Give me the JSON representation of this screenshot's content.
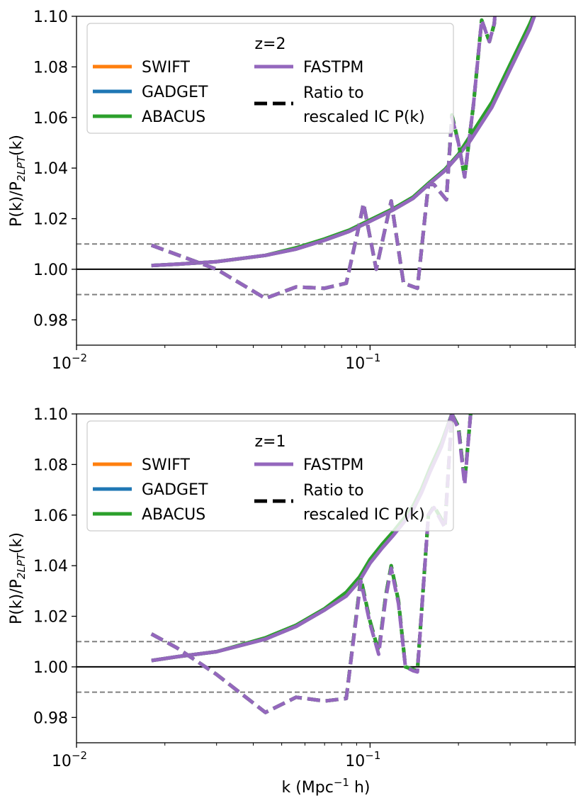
{
  "colors": {
    "swift": "#ff7f0e",
    "gadget": "#1f77b4",
    "abacus": "#2ca02c",
    "fastpm": "#9467bd",
    "ratio": "#000000",
    "reference": "#000000",
    "band": "#808080"
  },
  "chart_data": [
    {
      "type": "line",
      "title": "",
      "annotation": "z=2",
      "xlabel": "",
      "ylabel": "P(k)/P2LPT(k)",
      "ylabel_main": "P(k)/P",
      "ylabel_sub": "2LPT",
      "ylabel_tail": "(k)",
      "xscale": "log",
      "xlim": [
        0.01,
        0.5
      ],
      "ylim": [
        0.97,
        1.1
      ],
      "xticks": [
        {
          "value": 0.01,
          "base": "10",
          "exp": "−2"
        },
        {
          "value": 0.1,
          "base": "10",
          "exp": "−1"
        }
      ],
      "yticks": [
        0.98,
        1.0,
        1.02,
        1.04,
        1.06,
        1.08,
        1.1
      ],
      "ytick_labels": [
        "0.98",
        "1.00",
        "1.02",
        "1.04",
        "1.06",
        "1.08",
        "1.10"
      ],
      "reference_line": 1.0,
      "band_lines": [
        0.99,
        1.01
      ],
      "legend": {
        "placement": "upper-left",
        "title": "z=2",
        "entries": [
          {
            "label": "SWIFT",
            "key": "swift",
            "style": "solid"
          },
          {
            "label": "GADGET",
            "key": "gadget",
            "style": "solid"
          },
          {
            "label": "ABACUS",
            "key": "abacus",
            "style": "solid"
          },
          {
            "label": "FASTPM",
            "key": "fastpm",
            "style": "solid"
          },
          {
            "label": "Ratio to",
            "label2": "rescaled IC P(k)",
            "key": "ratio",
            "style": "dashed"
          }
        ]
      },
      "series": [
        {
          "name": "SWIFT",
          "key": "swift",
          "style": "solid",
          "x": [
            0.018,
            0.022,
            0.03,
            0.044,
            0.056,
            0.07,
            0.085,
            0.1,
            0.12,
            0.14,
            0.16,
            0.18,
            0.2,
            0.22,
            0.26,
            0.3,
            0.35,
            0.39
          ],
          "y": [
            1.0015,
            1.002,
            1.003,
            1.0055,
            1.008,
            1.0115,
            1.015,
            1.019,
            1.0235,
            1.028,
            1.034,
            1.039,
            1.045,
            1.052,
            1.065,
            1.08,
            1.096,
            1.11
          ]
        },
        {
          "name": "GADGET",
          "key": "gadget",
          "style": "solid",
          "x": [
            0.018,
            0.022,
            0.03,
            0.044,
            0.056,
            0.07,
            0.085,
            0.1,
            0.12,
            0.14,
            0.16,
            0.18,
            0.2,
            0.22,
            0.26,
            0.3,
            0.35,
            0.39
          ],
          "y": [
            1.0015,
            1.002,
            1.003,
            1.0055,
            1.008,
            1.0115,
            1.015,
            1.019,
            1.0235,
            1.028,
            1.034,
            1.039,
            1.045,
            1.052,
            1.065,
            1.08,
            1.096,
            1.11
          ]
        },
        {
          "name": "ABACUS",
          "key": "abacus",
          "style": "solid",
          "x": [
            0.018,
            0.022,
            0.03,
            0.044,
            0.056,
            0.07,
            0.085,
            0.1,
            0.12,
            0.14,
            0.16,
            0.18,
            0.2,
            0.22,
            0.26,
            0.3,
            0.35,
            0.39
          ],
          "y": [
            1.0015,
            1.002,
            1.003,
            1.0055,
            1.0085,
            1.012,
            1.0155,
            1.0195,
            1.024,
            1.0285,
            1.0345,
            1.0395,
            1.0455,
            1.053,
            1.066,
            1.081,
            1.097,
            1.11
          ]
        },
        {
          "name": "FASTPM",
          "key": "fastpm",
          "style": "solid",
          "x": [
            0.018,
            0.022,
            0.03,
            0.044,
            0.056,
            0.07,
            0.085,
            0.1,
            0.12,
            0.14,
            0.16,
            0.18,
            0.2,
            0.22,
            0.26,
            0.3,
            0.35,
            0.39
          ],
          "y": [
            1.0015,
            1.002,
            1.003,
            1.0055,
            1.008,
            1.0115,
            1.015,
            1.019,
            1.0235,
            1.028,
            1.034,
            1.039,
            1.045,
            1.051,
            1.064,
            1.079,
            1.095,
            1.11
          ]
        },
        {
          "name": "SWIFT ratio",
          "key": "swift",
          "style": "dashed",
          "x": [
            0.018,
            0.03,
            0.044,
            0.056,
            0.07,
            0.083,
            0.092,
            0.095,
            0.105,
            0.118,
            0.13,
            0.145,
            0.158,
            0.165,
            0.182,
            0.19,
            0.2,
            0.21,
            0.225,
            0.24,
            0.255,
            0.265,
            0.27
          ],
          "y": [
            1.0095,
            1.0,
            0.9885,
            0.993,
            0.9925,
            0.9945,
            1.018,
            1.026,
            1.0,
            1.027,
            0.9945,
            0.9925,
            1.0335,
            1.0335,
            1.0275,
            1.061,
            1.05,
            1.0365,
            1.065,
            1.0985,
            1.09,
            1.097,
            1.11
          ]
        },
        {
          "name": "GADGET ratio",
          "key": "gadget",
          "style": "dashed",
          "x": [
            0.018,
            0.03,
            0.044,
            0.056,
            0.07,
            0.083,
            0.092,
            0.095,
            0.105,
            0.118,
            0.13,
            0.145,
            0.158,
            0.165,
            0.182,
            0.19,
            0.2,
            0.21,
            0.225,
            0.24,
            0.255,
            0.265,
            0.27
          ],
          "y": [
            1.0095,
            1.0,
            0.9885,
            0.993,
            0.9925,
            0.9945,
            1.018,
            1.026,
            1.0,
            1.027,
            0.9945,
            0.9925,
            1.0335,
            1.0335,
            1.0275,
            1.061,
            1.05,
            1.0365,
            1.065,
            1.0985,
            1.09,
            1.097,
            1.11
          ]
        },
        {
          "name": "ABACUS ratio",
          "key": "abacus",
          "style": "dashed",
          "x": [
            0.018,
            0.03,
            0.044,
            0.056,
            0.07,
            0.083,
            0.092,
            0.095,
            0.105,
            0.118,
            0.13,
            0.145,
            0.158,
            0.165,
            0.182,
            0.19,
            0.2,
            0.21,
            0.225,
            0.24,
            0.255,
            0.265,
            0.27
          ],
          "y": [
            1.0095,
            1.0,
            0.9885,
            0.993,
            0.9925,
            0.9945,
            1.018,
            1.026,
            1.0,
            1.027,
            0.9945,
            0.9925,
            1.0335,
            1.0335,
            1.0275,
            1.061,
            1.05,
            1.0365,
            1.065,
            1.0985,
            1.09,
            1.097,
            1.11
          ]
        },
        {
          "name": "FASTPM ratio",
          "key": "fastpm",
          "style": "dashed",
          "x": [
            0.018,
            0.03,
            0.044,
            0.056,
            0.07,
            0.083,
            0.092,
            0.095,
            0.105,
            0.118,
            0.13,
            0.145,
            0.158,
            0.165,
            0.182,
            0.19,
            0.2,
            0.21,
            0.225,
            0.24,
            0.255,
            0.265,
            0.27
          ],
          "y": [
            1.0095,
            1.0,
            0.9885,
            0.993,
            0.9925,
            0.9945,
            1.018,
            1.026,
            1.0,
            1.027,
            0.9945,
            0.9925,
            1.0335,
            1.0335,
            1.0275,
            1.06,
            1.05,
            1.0365,
            1.065,
            1.0985,
            1.09,
            1.097,
            1.11
          ]
        }
      ]
    },
    {
      "type": "line",
      "title": "",
      "annotation": "z=1",
      "xlabel": "k (Mpc−1 h)",
      "xlabel_main": "k (Mpc",
      "xlabel_sup": "−1",
      "xlabel_tail": " h)",
      "ylabel": "P(k)/P2LPT(k)",
      "ylabel_main": "P(k)/P",
      "ylabel_sub": "2LPT",
      "ylabel_tail": "(k)",
      "xscale": "log",
      "xlim": [
        0.01,
        0.5
      ],
      "ylim": [
        0.97,
        1.1
      ],
      "xticks": [
        {
          "value": 0.01,
          "base": "10",
          "exp": "−2"
        },
        {
          "value": 0.1,
          "base": "10",
          "exp": "−1"
        }
      ],
      "yticks": [
        0.98,
        1.0,
        1.02,
        1.04,
        1.06,
        1.08,
        1.1
      ],
      "ytick_labels": [
        "0.98",
        "1.00",
        "1.02",
        "1.04",
        "1.06",
        "1.08",
        "1.10"
      ],
      "reference_line": 1.0,
      "band_lines": [
        0.99,
        1.01
      ],
      "legend": {
        "placement": "upper-left",
        "title": "z=1",
        "entries": [
          {
            "label": "SWIFT",
            "key": "swift",
            "style": "solid"
          },
          {
            "label": "GADGET",
            "key": "gadget",
            "style": "solid"
          },
          {
            "label": "ABACUS",
            "key": "abacus",
            "style": "solid"
          },
          {
            "label": "FASTPM",
            "key": "fastpm",
            "style": "solid"
          },
          {
            "label": "Ratio to",
            "label2": "rescaled IC P(k)",
            "key": "ratio",
            "style": "dashed"
          }
        ]
      },
      "series": [
        {
          "name": "SWIFT",
          "key": "swift",
          "style": "solid",
          "x": [
            0.018,
            0.022,
            0.03,
            0.044,
            0.056,
            0.07,
            0.083,
            0.092,
            0.1,
            0.11,
            0.12,
            0.13,
            0.14,
            0.15,
            0.16,
            0.175,
            0.19
          ],
          "y": [
            1.0025,
            1.004,
            1.006,
            1.011,
            1.016,
            1.0225,
            1.029,
            1.035,
            1.042,
            1.048,
            1.053,
            1.058,
            1.063,
            1.07,
            1.078,
            1.088,
            1.1
          ]
        },
        {
          "name": "GADGET",
          "key": "gadget",
          "style": "solid",
          "x": [
            0.018,
            0.022,
            0.03,
            0.044,
            0.056,
            0.07,
            0.083,
            0.092,
            0.1,
            0.11,
            0.12,
            0.13,
            0.14,
            0.15,
            0.16,
            0.175,
            0.19
          ],
          "y": [
            1.0025,
            1.004,
            1.006,
            1.011,
            1.016,
            1.0225,
            1.029,
            1.035,
            1.042,
            1.048,
            1.053,
            1.058,
            1.063,
            1.07,
            1.078,
            1.088,
            1.1
          ]
        },
        {
          "name": "ABACUS",
          "key": "abacus",
          "style": "solid",
          "x": [
            0.018,
            0.022,
            0.03,
            0.044,
            0.056,
            0.07,
            0.083,
            0.092,
            0.1,
            0.11,
            0.12,
            0.13,
            0.14,
            0.15,
            0.16,
            0.175,
            0.19
          ],
          "y": [
            1.0025,
            1.004,
            1.006,
            1.0115,
            1.0165,
            1.023,
            1.0295,
            1.0355,
            1.0425,
            1.0485,
            1.0535,
            1.0585,
            1.0635,
            1.0705,
            1.0785,
            1.0885,
            1.1
          ]
        },
        {
          "name": "FASTPM",
          "key": "fastpm",
          "style": "solid",
          "x": [
            0.018,
            0.022,
            0.03,
            0.044,
            0.056,
            0.07,
            0.083,
            0.092,
            0.1,
            0.11,
            0.12,
            0.13,
            0.14,
            0.15,
            0.16,
            0.175,
            0.19
          ],
          "y": [
            1.0025,
            1.004,
            1.006,
            1.011,
            1.016,
            1.0225,
            1.028,
            1.034,
            1.041,
            1.047,
            1.052,
            1.057,
            1.062,
            1.069,
            1.077,
            1.087,
            1.1
          ]
        },
        {
          "name": "SWIFT ratio",
          "key": "swift",
          "style": "dashed",
          "x": [
            0.018,
            0.022,
            0.03,
            0.044,
            0.056,
            0.07,
            0.083,
            0.093,
            0.1,
            0.107,
            0.113,
            0.118,
            0.125,
            0.132,
            0.14,
            0.145,
            0.158,
            0.165,
            0.18,
            0.19,
            0.2,
            0.21,
            0.22,
            0.225
          ],
          "y": [
            1.013,
            1.0075,
            0.997,
            0.982,
            0.988,
            0.9865,
            0.9875,
            1.035,
            1.018,
            1.006,
            1.028,
            1.04,
            1.026,
            1.0,
            0.999,
            0.9985,
            1.06,
            1.0635,
            1.056,
            1.1,
            1.095,
            1.073,
            1.1,
            1.11
          ]
        },
        {
          "name": "GADGET ratio",
          "key": "gadget",
          "style": "dashed",
          "x": [
            0.018,
            0.022,
            0.03,
            0.044,
            0.056,
            0.07,
            0.083,
            0.093,
            0.1,
            0.107,
            0.113,
            0.118,
            0.125,
            0.132,
            0.14,
            0.145,
            0.158,
            0.165,
            0.18,
            0.19,
            0.2,
            0.21,
            0.22,
            0.225
          ],
          "y": [
            1.013,
            1.0075,
            0.997,
            0.982,
            0.988,
            0.9865,
            0.9875,
            1.035,
            1.018,
            1.006,
            1.028,
            1.04,
            1.026,
            1.0,
            0.999,
            0.9985,
            1.06,
            1.0635,
            1.056,
            1.1,
            1.095,
            1.073,
            1.1,
            1.11
          ]
        },
        {
          "name": "ABACUS ratio",
          "key": "abacus",
          "style": "dashed",
          "x": [
            0.018,
            0.022,
            0.03,
            0.044,
            0.056,
            0.07,
            0.083,
            0.093,
            0.1,
            0.107,
            0.113,
            0.118,
            0.125,
            0.132,
            0.14,
            0.145,
            0.158,
            0.165,
            0.18,
            0.19,
            0.2,
            0.21,
            0.22,
            0.225
          ],
          "y": [
            1.013,
            1.0075,
            0.997,
            0.982,
            0.988,
            0.9865,
            0.9875,
            1.035,
            1.018,
            1.006,
            1.028,
            1.04,
            1.026,
            1.0,
            0.999,
            0.9985,
            1.06,
            1.0635,
            1.056,
            1.1,
            1.095,
            1.073,
            1.1,
            1.11
          ]
        },
        {
          "name": "FASTPM ratio",
          "key": "fastpm",
          "style": "dashed",
          "x": [
            0.018,
            0.022,
            0.03,
            0.044,
            0.056,
            0.07,
            0.083,
            0.093,
            0.1,
            0.107,
            0.113,
            0.118,
            0.125,
            0.132,
            0.14,
            0.145,
            0.158,
            0.165,
            0.18,
            0.19,
            0.2,
            0.21,
            0.22,
            0.225
          ],
          "y": [
            1.013,
            1.0075,
            0.997,
            0.982,
            0.988,
            0.9865,
            0.9875,
            1.034,
            1.017,
            1.005,
            1.027,
            1.039,
            1.025,
            1.0,
            0.9985,
            0.998,
            1.06,
            1.063,
            1.055,
            1.1,
            1.094,
            1.072,
            1.1,
            1.11
          ]
        }
      ]
    }
  ]
}
